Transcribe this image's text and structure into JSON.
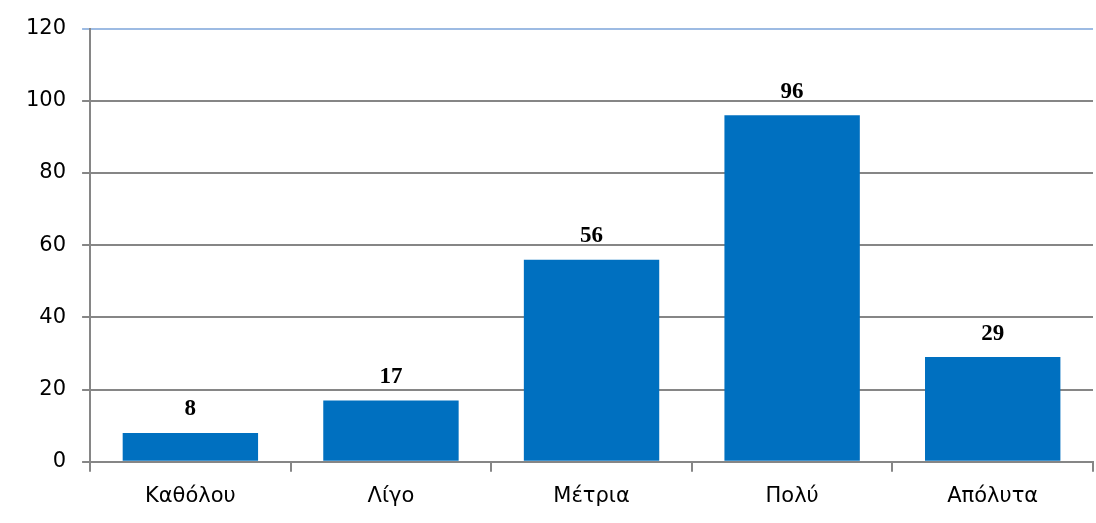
{
  "chart_data": {
    "type": "bar",
    "categories": [
      "Καθόλου",
      "Λίγο",
      "Μέτρια",
      "Πολύ",
      "Απόλυτα"
    ],
    "values": [
      8,
      17,
      56,
      96,
      29
    ],
    "color": "#0070c0",
    "ylim": [
      0,
      120
    ],
    "yticks": [
      0,
      20,
      40,
      60,
      80,
      100,
      120
    ],
    "grid": "y",
    "legend": false,
    "data_labels": true
  }
}
